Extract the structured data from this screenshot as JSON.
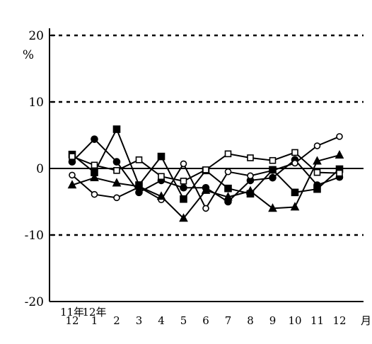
{
  "chart_data": {
    "type": "line",
    "y_unit": "%",
    "x_unit": "月",
    "year_labels": [
      {
        "text": "11年",
        "at": 0
      },
      {
        "text": "12年",
        "at": 1
      }
    ],
    "categories": [
      "12",
      "1",
      "2",
      "3",
      "4",
      "5",
      "6",
      "7",
      "8",
      "9",
      "10",
      "11",
      "12"
    ],
    "ylim": [
      -20,
      20
    ],
    "yticks": [
      {
        "value": 20,
        "label": "20"
      },
      {
        "value": 10,
        "label": "10"
      },
      {
        "value": 0,
        "label": "0"
      },
      {
        "value": -10,
        "label": "-10"
      },
      {
        "value": -20,
        "label": "-20"
      }
    ],
    "dashed_gridlines": [
      20,
      10,
      -10
    ],
    "series": [
      {
        "marker": "filled-circle",
        "values": [
          1.0,
          4.4,
          1.0,
          -3.6,
          -1.8,
          -2.9,
          -2.9,
          -5.0,
          -1.8,
          -1.4,
          1.3,
          -2.5,
          -1.3
        ]
      },
      {
        "marker": "open-circle",
        "values": [
          -1.0,
          -3.9,
          -4.4,
          -2.8,
          -4.7,
          0.7,
          -6.0,
          -0.5,
          -1.1,
          -0.3,
          0.8,
          3.4,
          4.8
        ]
      },
      {
        "marker": "filled-square",
        "values": [
          2.1,
          -0.6,
          5.9,
          -2.5,
          1.8,
          -4.6,
          -0.3,
          -3.0,
          -3.8,
          -0.2,
          -3.6,
          -3.1,
          -0.1
        ]
      },
      {
        "marker": "open-square",
        "values": [
          1.8,
          0.5,
          -0.3,
          1.3,
          -1.2,
          -1.9,
          -0.2,
          2.2,
          1.6,
          1.2,
          2.4,
          -0.6,
          -0.7
        ]
      },
      {
        "marker": "filled-triangle",
        "values": [
          -2.5,
          -1.4,
          -2.2,
          -2.7,
          -4.2,
          -7.5,
          -3.3,
          -4.3,
          -3.4,
          -6.0,
          -5.8,
          1.1,
          2.0
        ]
      }
    ]
  }
}
